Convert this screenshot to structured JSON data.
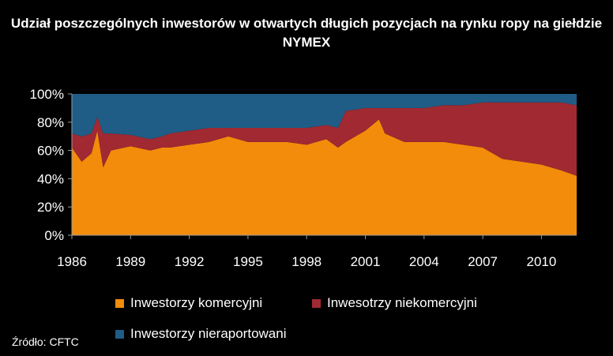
{
  "chart_data": {
    "type": "area",
    "stacked": true,
    "percent": true,
    "title": "Udział poszczególnych inwestorów w otwartych długich pozycjach na rynku ropy na giełdzie NYMEX",
    "source": "Źródło: CFTC",
    "x_ticks": [
      "1986",
      "1989",
      "1992",
      "1995",
      "1998",
      "2001",
      "2004",
      "2007",
      "2010"
    ],
    "x_tick_values": [
      1986,
      1989,
      1992,
      1995,
      1998,
      2001,
      2004,
      2007,
      2010
    ],
    "xlim": [
      1986,
      2011.8
    ],
    "y_ticks": [
      "0%",
      "20%",
      "40%",
      "60%",
      "80%",
      "100%"
    ],
    "y_tick_values": [
      0,
      20,
      40,
      60,
      80,
      100
    ],
    "ylim": [
      0,
      100
    ],
    "grid": false,
    "legend_position": "bottom",
    "x": [
      1986.0,
      1986.5,
      1987.0,
      1987.3,
      1987.6,
      1988.0,
      1989.0,
      1990.0,
      1990.6,
      1991.0,
      1992.0,
      1993.0,
      1994.0,
      1995.0,
      1996.0,
      1997.0,
      1998.0,
      1999.0,
      1999.6,
      2000.0,
      2001.0,
      2001.7,
      2002.0,
      2003.0,
      2004.0,
      2005.0,
      2006.0,
      2007.0,
      2008.0,
      2009.0,
      2010.0,
      2011.0,
      2011.8
    ],
    "series": [
      {
        "name": "Inwestorzy komercyjni",
        "color": "#f28c0a",
        "values": [
          62,
          52,
          58,
          74,
          48,
          60,
          63,
          60,
          62,
          62,
          64,
          66,
          70,
          66,
          66,
          66,
          64,
          68,
          62,
          66,
          74,
          82,
          72,
          66,
          66,
          66,
          64,
          62,
          54,
          52,
          50,
          46,
          42
        ]
      },
      {
        "name": "Inwesotrzy niekomercyjni",
        "color": "#a02932",
        "values": [
          10,
          18,
          14,
          10,
          24,
          12,
          8,
          8,
          8,
          10,
          10,
          10,
          6,
          10,
          10,
          10,
          12,
          10,
          14,
          22,
          16,
          8,
          18,
          24,
          24,
          26,
          28,
          32,
          40,
          42,
          44,
          48,
          50
        ]
      },
      {
        "name": "Inwestorzy nieraportowani",
        "color": "#1f5d86",
        "values": [
          28,
          30,
          28,
          16,
          28,
          28,
          29,
          32,
          30,
          28,
          26,
          24,
          24,
          24,
          24,
          24,
          24,
          22,
          24,
          12,
          10,
          10,
          10,
          10,
          10,
          8,
          8,
          6,
          6,
          6,
          6,
          6,
          8
        ]
      }
    ]
  }
}
